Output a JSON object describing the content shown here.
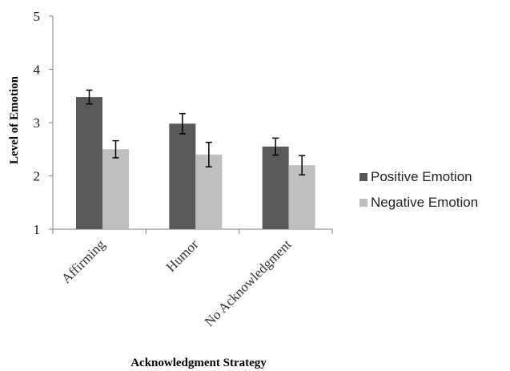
{
  "chart_data": {
    "type": "bar",
    "title": "",
    "xlabel": "Acknowledgment Strategy",
    "ylabel": "Level of Emotion",
    "ylim": [
      1,
      5
    ],
    "yticks": [
      "1",
      "2",
      "3",
      "4",
      "5"
    ],
    "categories": [
      "Affirming",
      "Humor",
      "No Acknowledgment"
    ],
    "series": [
      {
        "name": "Positive Emotion",
        "values": [
          3.48,
          2.98,
          2.55
        ],
        "errors": [
          0.13,
          0.19,
          0.16
        ],
        "color": "#595959"
      },
      {
        "name": "Negative Emotion",
        "values": [
          2.5,
          2.4,
          2.2
        ],
        "errors": [
          0.16,
          0.23,
          0.18
        ],
        "color": "#bfbfbf"
      }
    ],
    "grid": false,
    "legend_position": "right"
  }
}
